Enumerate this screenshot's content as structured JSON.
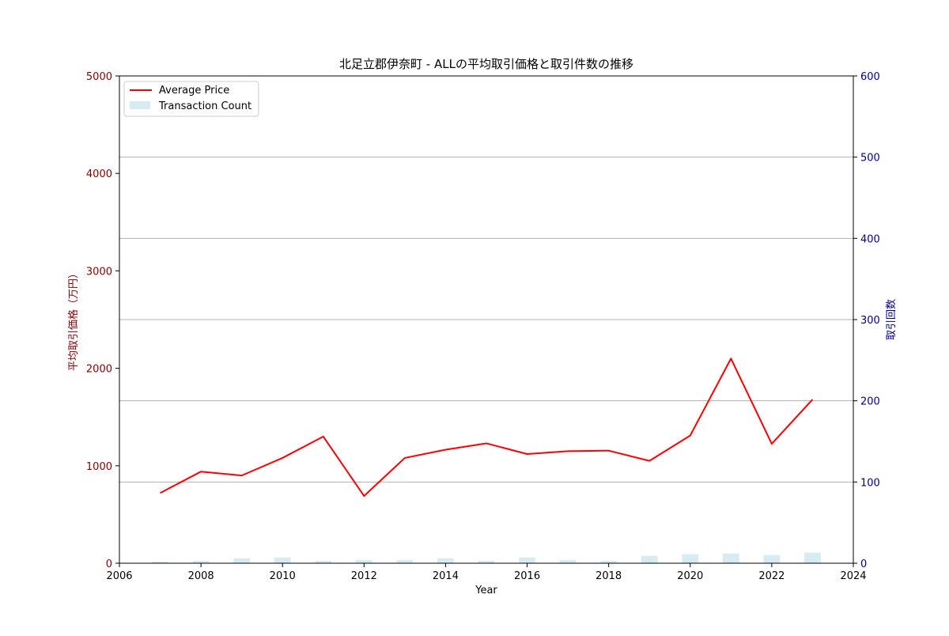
{
  "chart_data": {
    "type": "bar+line",
    "title": "北足立郡伊奈町 - ALLの平均取引価格と取引件数の推移",
    "xlabel": "Year",
    "ylabel_left": "平均取引価格（万円）",
    "ylabel_right": "取引回数",
    "xlim": [
      2006,
      2024
    ],
    "ylim_left": [
      0,
      5000
    ],
    "ylim_right": [
      0,
      600
    ],
    "x_ticks": [
      2006,
      2008,
      2010,
      2012,
      2014,
      2016,
      2018,
      2020,
      2022,
      2024
    ],
    "y_ticks_left": [
      0,
      1000,
      2000,
      3000,
      4000,
      5000
    ],
    "y_ticks_right": [
      0,
      100,
      200,
      300,
      400,
      500,
      600
    ],
    "grid": "horizontal-right-axis",
    "legend_position": "top-left",
    "years": [
      2007,
      2008,
      2009,
      2010,
      2011,
      2012,
      2013,
      2014,
      2015,
      2016,
      2017,
      2018,
      2019,
      2020,
      2021,
      2022,
      2023
    ],
    "series": [
      {
        "name": "Average Price",
        "kind": "line",
        "axis": "left",
        "color": "#ff0000",
        "values": [
          720,
          940,
          900,
          1080,
          1300,
          690,
          1080,
          1165,
          1230,
          1120,
          1150,
          1155,
          1050,
          1310,
          2100,
          1225,
          1680
        ]
      },
      {
        "name": "Transaction Count",
        "kind": "bar",
        "axis": "right",
        "color": "#add8e6",
        "values": [
          2,
          3,
          6,
          7,
          3,
          4,
          4,
          6,
          3,
          7,
          4,
          3,
          9,
          11,
          12,
          10,
          13
        ]
      }
    ],
    "colors": {
      "left_axis": "#8b0000",
      "right_axis": "#00008b",
      "grid": "#b0b0b0"
    }
  }
}
